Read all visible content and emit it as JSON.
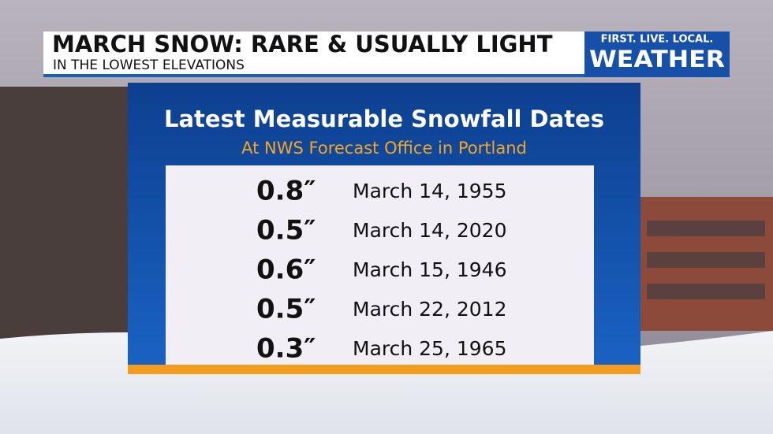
{
  "header": {
    "title": "MARCH SNOW: RARE & USUALLY LIGHT",
    "subtitle": "IN THE LOWEST ELEVATIONS"
  },
  "logo": {
    "tagline": "FIRST. LIVE. LOCAL.",
    "name": "WEATHER"
  },
  "panel": {
    "title": "Latest Measurable Snowfall Dates",
    "subtitle": "At NWS Forecast Office in Portland"
  },
  "table": {
    "rows": [
      [
        "0.8″",
        "March 14, 1955"
      ],
      [
        "0.5″",
        "March 14, 2020"
      ],
      [
        "0.6″",
        "March 15, 1946"
      ],
      [
        "0.5″",
        "March 22, 2012"
      ],
      [
        "0.3″",
        "March 25, 1965"
      ]
    ]
  }
}
